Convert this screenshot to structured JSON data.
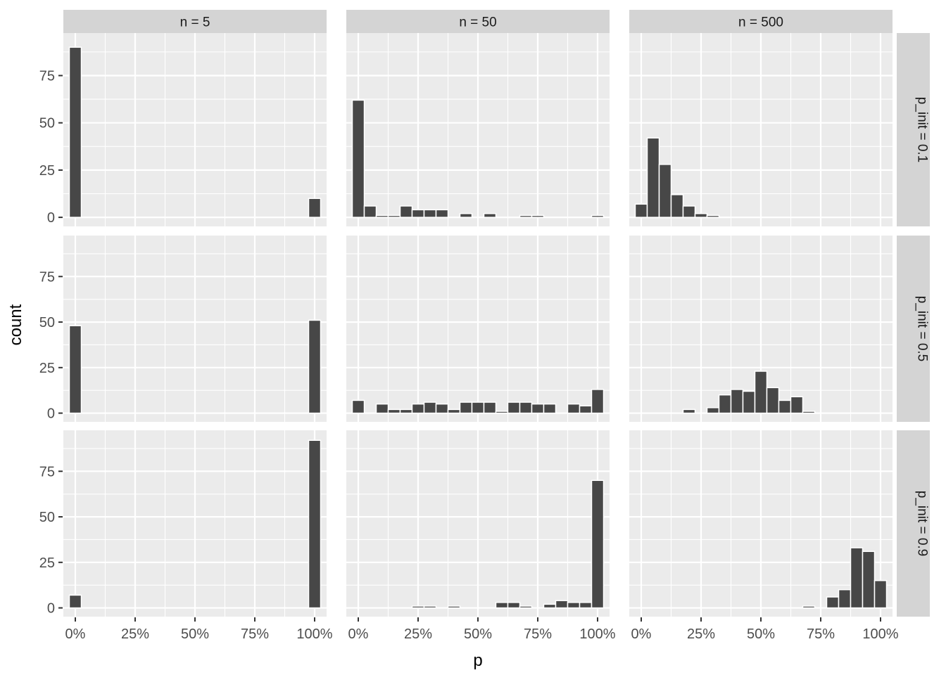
{
  "chart_data": {
    "type": "bar",
    "subtype": "faceted-histogram-grid",
    "title": "",
    "xlabel": "p",
    "ylabel": "count",
    "legend": "none",
    "grid": "on",
    "x_tick_labels": [
      "0%",
      "25%",
      "50%",
      "75%",
      "100%"
    ],
    "x_tick_values": [
      0,
      25,
      50,
      75,
      100
    ],
    "x_minor_values": [
      12.5,
      37.5,
      62.5,
      87.5
    ],
    "y_tick_labels": [
      "0",
      "25",
      "50",
      "75"
    ],
    "y_tick_values": [
      0,
      25,
      50,
      75
    ],
    "y_minor_values": [
      12.5,
      37.5,
      62.5,
      87.5
    ],
    "x_domain": [
      -5,
      105
    ],
    "y_domain": [
      -4.8,
      97.5
    ],
    "bin_width_pct": 5,
    "col_facets": [
      {
        "label": "n = 5"
      },
      {
        "label": "n = 50"
      },
      {
        "label": "n = 500"
      }
    ],
    "row_facets": [
      {
        "label": "p_init = 0.1"
      },
      {
        "label": "p_init = 0.5"
      },
      {
        "label": "p_init = 0.9"
      }
    ],
    "panels": [
      {
        "row": 0,
        "col": 0,
        "row_label": "p_init = 0.1",
        "col_label": "n = 5",
        "bins": [
          [
            0,
            90
          ],
          [
            100,
            10
          ]
        ]
      },
      {
        "row": 0,
        "col": 1,
        "row_label": "p_init = 0.1",
        "col_label": "n = 50",
        "bins": [
          [
            0,
            62
          ],
          [
            5,
            6
          ],
          [
            10,
            1
          ],
          [
            15,
            1
          ],
          [
            20,
            6
          ],
          [
            25,
            4
          ],
          [
            30,
            4
          ],
          [
            35,
            4
          ],
          [
            45,
            2
          ],
          [
            55,
            2
          ],
          [
            70,
            1
          ],
          [
            75,
            1
          ],
          [
            100,
            1
          ]
        ]
      },
      {
        "row": 0,
        "col": 2,
        "row_label": "p_init = 0.1",
        "col_label": "n = 500",
        "bins": [
          [
            0,
            7
          ],
          [
            5,
            42
          ],
          [
            10,
            28
          ],
          [
            15,
            12
          ],
          [
            20,
            6
          ],
          [
            25,
            2
          ],
          [
            30,
            1
          ]
        ]
      },
      {
        "row": 1,
        "col": 0,
        "row_label": "p_init = 0.5",
        "col_label": "n = 5",
        "bins": [
          [
            0,
            48
          ],
          [
            100,
            51
          ]
        ]
      },
      {
        "row": 1,
        "col": 1,
        "row_label": "p_init = 0.5",
        "col_label": "n = 50",
        "bins": [
          [
            0,
            7
          ],
          [
            10,
            5
          ],
          [
            15,
            2
          ],
          [
            20,
            2
          ],
          [
            25,
            5
          ],
          [
            30,
            6
          ],
          [
            35,
            5
          ],
          [
            40,
            2
          ],
          [
            45,
            6
          ],
          [
            50,
            6
          ],
          [
            55,
            6
          ],
          [
            60,
            1
          ],
          [
            65,
            6
          ],
          [
            70,
            6
          ],
          [
            75,
            5
          ],
          [
            80,
            5
          ],
          [
            90,
            5
          ],
          [
            95,
            4
          ],
          [
            100,
            13
          ]
        ]
      },
      {
        "row": 1,
        "col": 2,
        "row_label": "p_init = 0.5",
        "col_label": "n = 500",
        "bins": [
          [
            20,
            2
          ],
          [
            30,
            3
          ],
          [
            35,
            10
          ],
          [
            40,
            13
          ],
          [
            45,
            12
          ],
          [
            50,
            23
          ],
          [
            55,
            14
          ],
          [
            60,
            7
          ],
          [
            65,
            9
          ],
          [
            70,
            1
          ]
        ]
      },
      {
        "row": 2,
        "col": 0,
        "row_label": "p_init = 0.9",
        "col_label": "n = 5",
        "bins": [
          [
            0,
            7
          ],
          [
            100,
            92
          ]
        ]
      },
      {
        "row": 2,
        "col": 1,
        "row_label": "p_init = 0.9",
        "col_label": "n = 50",
        "bins": [
          [
            25,
            1
          ],
          [
            30,
            1
          ],
          [
            40,
            1
          ],
          [
            60,
            3
          ],
          [
            65,
            3
          ],
          [
            70,
            1
          ],
          [
            80,
            2
          ],
          [
            85,
            4
          ],
          [
            90,
            3
          ],
          [
            95,
            3
          ],
          [
            100,
            70
          ]
        ]
      },
      {
        "row": 2,
        "col": 2,
        "row_label": "p_init = 0.9",
        "col_label": "n = 500",
        "bins": [
          [
            70,
            1
          ],
          [
            80,
            6
          ],
          [
            85,
            10
          ],
          [
            90,
            33
          ],
          [
            95,
            31
          ],
          [
            100,
            15
          ]
        ]
      }
    ],
    "colors": {
      "background": "#FFFFFF",
      "panel_bg": "#EBEBEB",
      "grid_major": "#FFFFFF",
      "grid_minor": "#FFFFFF",
      "bar_fill": "#474747",
      "bar_stroke": "#FFFFFF",
      "strip_bg": "#D4D4D4",
      "strip_text": "#1A1A1A",
      "tick_text": "#4D4D4D",
      "tick_mark": "#333333",
      "axis_title": "#000000"
    }
  }
}
